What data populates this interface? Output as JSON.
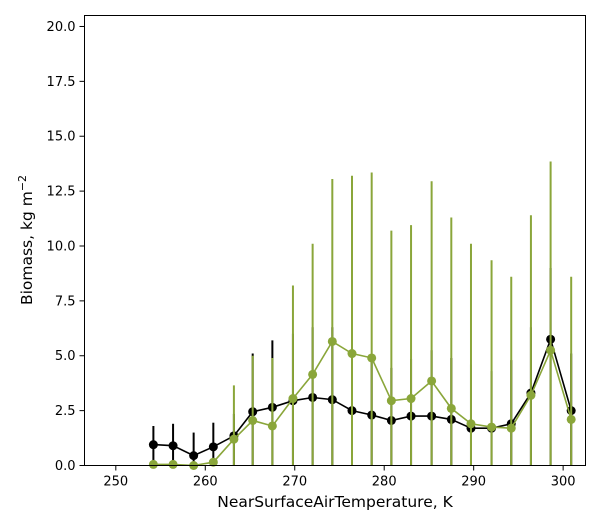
{
  "chart_data": {
    "type": "line",
    "xlabel": "NearSurfaceAirTemperature,  K",
    "ylabel": "Biomass,  kg m",
    "ylabel_superscript": "−2",
    "xlim": [
      246.5,
      302.5
    ],
    "ylim": [
      0,
      20.5
    ],
    "xticks": [
      250,
      260,
      270,
      280,
      290,
      300
    ],
    "yticks": [
      0.0,
      2.5,
      5.0,
      7.5,
      10.0,
      12.5,
      15.0,
      17.5,
      20.0
    ],
    "xtick_labels": [
      "250",
      "260",
      "270",
      "280",
      "290",
      "300"
    ],
    "ytick_labels": [
      "0.0",
      "2.5",
      "5.0",
      "7.5",
      "10.0",
      "12.5",
      "15.0",
      "17.5",
      "20.0"
    ],
    "grid": false,
    "series": [
      {
        "color": "#000000",
        "x": [
          254.2,
          256.4,
          258.7,
          260.9,
          263.2,
          265.3,
          267.5,
          269.8,
          272.0,
          274.2,
          276.4,
          278.6,
          280.8,
          283.0,
          285.3,
          287.5,
          289.7,
          292.0,
          294.2,
          296.4,
          298.6,
          300.9
        ],
        "y": [
          0.95,
          0.9,
          0.45,
          0.85,
          1.35,
          2.45,
          2.65,
          2.95,
          3.1,
          3.0,
          2.5,
          2.3,
          2.05,
          2.25,
          2.25,
          2.1,
          1.7,
          1.7,
          1.9,
          3.3,
          5.75,
          2.5
        ],
        "err_low": [
          0.95,
          0.9,
          0.45,
          0.85,
          1.35,
          2.45,
          2.65,
          2.95,
          3.1,
          3.0,
          2.5,
          2.3,
          2.05,
          2.25,
          2.25,
          2.1,
          1.7,
          1.7,
          1.9,
          3.3,
          5.75,
          2.5
        ],
        "err_high": [
          0.85,
          1.0,
          1.05,
          1.1,
          1.0,
          2.65,
          3.05,
          3.05,
          3.2,
          3.3,
          3.0,
          2.6,
          2.4,
          2.6,
          3.0,
          2.8,
          2.9,
          2.6,
          2.9,
          3.0,
          3.25,
          2.6
        ]
      },
      {
        "color": "#8aa63a",
        "x": [
          254.2,
          256.4,
          258.7,
          260.9,
          263.2,
          265.3,
          267.5,
          269.8,
          272.0,
          274.2,
          276.4,
          278.6,
          280.8,
          283.0,
          285.3,
          287.5,
          289.7,
          292.0,
          294.2,
          296.4,
          298.6,
          300.9
        ],
        "y": [
          0.05,
          0.05,
          0.0,
          0.15,
          1.2,
          2.05,
          1.8,
          3.05,
          4.15,
          5.65,
          5.1,
          4.9,
          2.95,
          3.05,
          3.85,
          2.6,
          1.9,
          1.75,
          1.7,
          3.2,
          5.25,
          2.1
        ],
        "err_low": [
          0.05,
          0.05,
          0.0,
          0.15,
          1.2,
          2.05,
          1.8,
          3.05,
          4.15,
          5.65,
          5.1,
          4.9,
          2.95,
          3.05,
          3.85,
          2.6,
          1.9,
          1.75,
          1.7,
          3.2,
          5.25,
          2.1
        ],
        "err_high": [
          0.05,
          0.05,
          0.0,
          0.15,
          2.45,
          2.95,
          3.1,
          5.15,
          5.95,
          7.4,
          8.1,
          8.45,
          7.75,
          7.9,
          9.1,
          8.7,
          8.2,
          7.6,
          6.9,
          8.2,
          8.6,
          6.5
        ]
      }
    ]
  }
}
